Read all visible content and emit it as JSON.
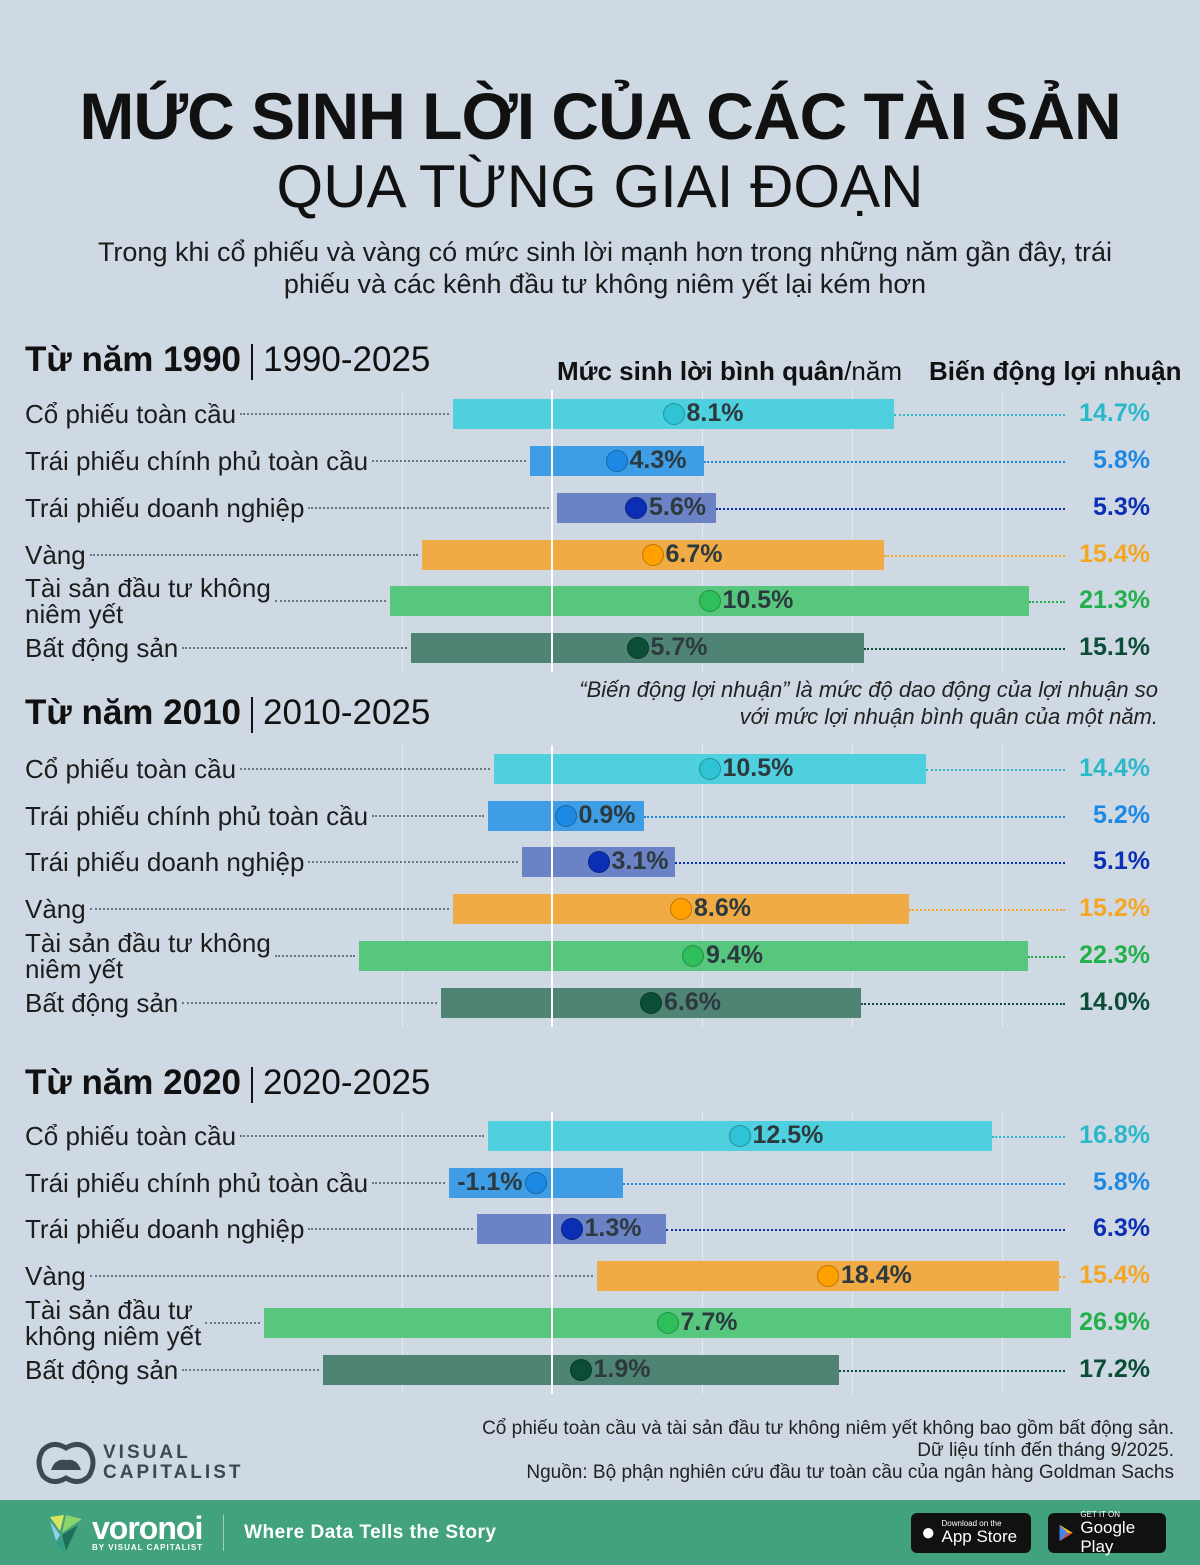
{
  "title_line1": "MỨC SINH LỜI CỦA CÁC TÀI SẢN",
  "title_line2": "QUA TỪNG GIAI ĐOẠN",
  "subtitle": "Trong khi cổ phiếu và vàng có mức sinh lời mạnh hơn trong những năm gần đây, trái phiếu và các kênh đầu tư không niêm yết lại kém hơn",
  "column_headers": {
    "mean_bold": "Mức sinh lời bình quân",
    "mean_unit": "/năm",
    "volatility": "Biến động lợi nhuận"
  },
  "note": "“Biến động lợi nhuận” là mức độ dao động của lợi nhuận so với mức lợi nhuận bình quân của một năm.",
  "colors": {
    "Cổ phiếu toàn cầu": {
      "bar": "#4fd0de",
      "dot": "#2ec4d6",
      "text": "#2bb8c9"
    },
    "Trái phiếu chính phủ toàn cầu": {
      "bar": "#3f9de6",
      "dot": "#1e88e5",
      "text": "#1e88e5"
    },
    "Trái phiếu doanh nghiệp": {
      "bar": "#6b82c6",
      "dot": "#0a2fb5",
      "text": "#0a2fb5"
    },
    "Vàng": {
      "bar": "#f0ab45",
      "dot": "#ff9f00",
      "text": "#f5a623"
    },
    "Tài sản đầu tư không niêm yết": {
      "bar": "#57c77d",
      "dot": "#2fbf5a",
      "text": "#21b04b"
    },
    "Bất động sản": {
      "bar": "#4f8474",
      "dot": "#0b4d36",
      "text": "#0b4d36"
    }
  },
  "chart_data": [
    {
      "type": "range-dot",
      "title_bold": "Từ năm 1990",
      "period": "1990-2025",
      "unit": "%",
      "categories": [
        "Cổ phiếu toàn cầu",
        "Trái phiếu chính phủ toàn cầu",
        "Trái phiếu doanh nghiệp",
        "Vàng",
        "Tài sản đầu tư không\nniêm yết",
        "Bất động sản"
      ],
      "series_keys": [
        "Cổ phiếu toàn cầu",
        "Trái phiếu chính phủ toàn cầu",
        "Trái phiếu doanh nghiệp",
        "Vàng",
        "Tài sản đầu tư không niêm yết",
        "Bất động sản"
      ],
      "mean_return": [
        8.1,
        4.3,
        5.6,
        6.7,
        10.5,
        5.7
      ],
      "volatility": [
        14.7,
        5.8,
        5.3,
        15.4,
        21.3,
        15.1
      ],
      "mean_labels": [
        "8.1%",
        "4.3%",
        "5.6%",
        "6.7%",
        "10.5%",
        "5.7%"
      ],
      "volatility_labels": [
        "14.7%",
        "5.8%",
        "5.3%",
        "15.4%",
        "21.3%",
        "15.1%"
      ]
    },
    {
      "type": "range-dot",
      "title_bold": "Từ năm 2010",
      "period": "2010-2025",
      "unit": "%",
      "categories": [
        "Cổ phiếu toàn cầu",
        "Trái phiếu chính phủ toàn cầu",
        "Trái phiếu doanh nghiệp",
        "Vàng",
        "Tài sản đầu tư không\nniêm yết",
        "Bất động sản"
      ],
      "series_keys": [
        "Cổ phiếu toàn cầu",
        "Trái phiếu chính phủ toàn cầu",
        "Trái phiếu doanh nghiệp",
        "Vàng",
        "Tài sản đầu tư không niêm yết",
        "Bất động sản"
      ],
      "mean_return": [
        10.5,
        0.9,
        3.1,
        8.6,
        9.4,
        6.6
      ],
      "volatility": [
        14.4,
        5.2,
        5.1,
        15.2,
        22.3,
        14.0
      ],
      "mean_labels": [
        "10.5%",
        "0.9%",
        "3.1%",
        "8.6%",
        "9.4%",
        "6.6%"
      ],
      "volatility_labels": [
        "14.4%",
        "5.2%",
        "5.1%",
        "15.2%",
        "22.3%",
        "14.0%"
      ]
    },
    {
      "type": "range-dot",
      "title_bold": "Từ năm 2020",
      "period": "2020-2025",
      "unit": "%",
      "categories": [
        "Cổ phiếu toàn cầu",
        "Trái phiếu chính phủ toàn cầu",
        "Trái phiếu doanh nghiệp",
        "Vàng",
        "Tài sản đầu tư\nkhông niêm yết",
        "Bất động sản"
      ],
      "series_keys": [
        "Cổ phiếu toàn cầu",
        "Trái phiếu chính phủ toàn cầu",
        "Trái phiếu doanh nghiệp",
        "Vàng",
        "Tài sản đầu tư không niêm yết",
        "Bất động sản"
      ],
      "mean_return": [
        12.5,
        -1.1,
        1.3,
        18.4,
        7.7,
        1.9
      ],
      "volatility": [
        16.8,
        5.8,
        6.3,
        15.4,
        26.9,
        17.2
      ],
      "mean_labels": [
        "12.5%",
        "-1.1%",
        "1.3%",
        "18.4%",
        "7.7%",
        "1.9%"
      ],
      "volatility_labels": [
        "16.8%",
        "5.8%",
        "6.3%",
        "15.4%",
        "26.9%",
        "17.2%"
      ]
    }
  ],
  "footnotes": [
    "Cổ phiếu toàn cầu và tài sản đầu tư không niêm yết không bao gồm bất động sản.",
    "Dữ liệu tính đến tháng 9/2025.",
    "Nguồn: Bộ phận nghiên cứu đầu tư toàn cầu của ngân hàng Goldman Sachs"
  ],
  "logo_text": [
    "VISUAL",
    "CAPITALIST"
  ],
  "footer": {
    "brand": "voronoi",
    "brand_sub": "BY VISUAL CAPITALIST",
    "tagline": "Where Data Tells the Story",
    "app_store_small": "Download on the",
    "app_store": "App Store",
    "google_small": "GET IT ON",
    "google": "Google Play",
    "bg": "#41a27d"
  }
}
